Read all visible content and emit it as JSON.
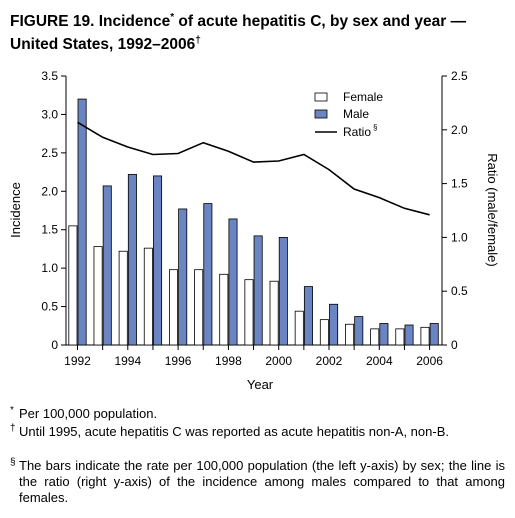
{
  "title": {
    "line1": "FIGURE 19. Incidence",
    "line1_mark": "*",
    "line1_rest": " of acute hepatitis C, by sex and year —",
    "line2": "United States, 1992–2006",
    "line2_mark": "†"
  },
  "chart_data": {
    "type": "bar",
    "categories": [
      "1992",
      "1993",
      "1994",
      "1995",
      "1996",
      "1997",
      "1998",
      "1999",
      "2000",
      "2001",
      "2002",
      "2003",
      "2004",
      "2005",
      "2006"
    ],
    "series": [
      {
        "name": "Female",
        "kind": "bar",
        "axis": "left",
        "color": "#ffffff",
        "values": [
          1.55,
          1.28,
          1.22,
          1.26,
          0.98,
          0.98,
          0.92,
          0.85,
          0.83,
          0.44,
          0.33,
          0.27,
          0.21,
          0.21,
          0.23
        ]
      },
      {
        "name": "Male",
        "kind": "bar",
        "axis": "left",
        "color": "#6b84c2",
        "values": [
          3.2,
          2.07,
          2.22,
          2.2,
          1.77,
          1.84,
          1.64,
          1.42,
          1.4,
          0.76,
          0.53,
          0.37,
          0.28,
          0.26,
          0.28
        ]
      },
      {
        "name": "Ratio",
        "kind": "line",
        "axis": "right",
        "color": "#000000",
        "values": [
          2.07,
          1.93,
          1.84,
          1.77,
          1.78,
          1.88,
          1.8,
          1.7,
          1.71,
          1.77,
          1.63,
          1.45,
          1.37,
          1.27,
          1.21
        ]
      }
    ],
    "legend_labels": [
      "Female",
      "Male",
      "Ratio"
    ],
    "legend_ratio_mark": "§",
    "legend_position": "top-right",
    "ylabel": "Incidence",
    "y2label": "Ratio (male/female)",
    "xlabel": "Year",
    "ylim": [
      0,
      3.5
    ],
    "y2lim": [
      0,
      2.5
    ],
    "yticks": [
      "0",
      "0.5",
      "1.0",
      "1.5",
      "2.0",
      "2.5",
      "3.0",
      "3.5"
    ],
    "y2ticks": [
      "0",
      "0.5",
      "1.0",
      "1.5",
      "2.0",
      "2.5"
    ],
    "xticklabels": [
      "1992",
      "1994",
      "1996",
      "1998",
      "2000",
      "2002",
      "2004",
      "2006"
    ],
    "grid": false
  },
  "footnotes": [
    {
      "mark": "*",
      "text": "Per 100,000 population."
    },
    {
      "mark": "†",
      "text": "Until 1995, acute hepatitis C was reported as acute hepatitis non-A, non-B."
    },
    {
      "mark": "§",
      "text": "The bars indicate the rate per 100,000 population (the left y-axis) by sex; the line is the ratio (right y-axis) of the incidence among males compared to that among females."
    }
  ]
}
